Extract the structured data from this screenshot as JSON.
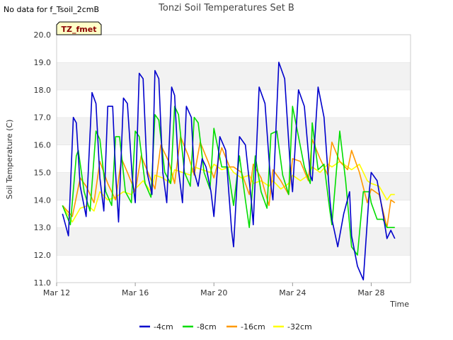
{
  "status_text": "No data for f_Tsoil_2cmB",
  "badge_label": "TZ_fmet",
  "chart_data": {
    "type": "line",
    "title": "Tonzi Soil Temperatures Set B",
    "xlabel": "Time",
    "ylabel": "Soil Temperature (C)",
    "ylim": [
      11.0,
      20.0
    ],
    "xlim_days": [
      0,
      18
    ],
    "y_ticks": [
      "11.0",
      "12.0",
      "13.0",
      "14.0",
      "15.0",
      "16.0",
      "17.0",
      "18.0",
      "19.0",
      "20.0"
    ],
    "x_ticks": [
      {
        "day": 0,
        "label": "Mar 12"
      },
      {
        "day": 4,
        "label": "Mar 16"
      },
      {
        "day": 8,
        "label": "Mar 20"
      },
      {
        "day": 12,
        "label": "Mar 24"
      },
      {
        "day": 16,
        "label": "Mar 28"
      }
    ],
    "grid": "horizontal bands",
    "legend_position": "bottom",
    "series": [
      {
        "name": "-4cm",
        "color": "#0000cc",
        "x": [
          0.3,
          0.6,
          0.85,
          1.0,
          1.2,
          1.5,
          1.8,
          2.0,
          2.2,
          2.4,
          2.6,
          2.85,
          3.0,
          3.15,
          3.4,
          3.6,
          3.85,
          4.0,
          4.2,
          4.4,
          4.6,
          4.85,
          5.0,
          5.2,
          5.4,
          5.6,
          5.85,
          6.0,
          6.2,
          6.4,
          6.6,
          6.85,
          7.0,
          7.2,
          7.4,
          7.6,
          7.85,
          8.0,
          8.3,
          8.6,
          8.9,
          9.0,
          9.3,
          9.6,
          9.9,
          10.0,
          10.3,
          10.6,
          10.9,
          11.0,
          11.3,
          11.6,
          11.9,
          12.0,
          12.3,
          12.6,
          12.9,
          13.0,
          13.3,
          13.6,
          13.9,
          14.0,
          14.3,
          14.6,
          14.9,
          15.0,
          15.3,
          15.6,
          15.9,
          16.0,
          16.3,
          16.6,
          16.8,
          17.0,
          17.2
        ],
        "y": [
          13.5,
          12.7,
          17.0,
          16.8,
          14.5,
          13.4,
          17.9,
          17.5,
          14.8,
          13.6,
          17.4,
          17.4,
          15.0,
          13.2,
          17.7,
          17.5,
          14.8,
          13.9,
          18.6,
          18.4,
          15.0,
          14.2,
          18.7,
          18.4,
          15.0,
          13.9,
          18.1,
          17.8,
          15.1,
          13.9,
          17.4,
          17.0,
          15.0,
          14.5,
          15.5,
          15.2,
          14.3,
          13.4,
          16.3,
          15.8,
          12.9,
          12.3,
          16.3,
          16.0,
          14.0,
          13.1,
          18.1,
          17.5,
          14.5,
          14.0,
          19.0,
          18.4,
          15.0,
          14.3,
          18.0,
          17.4,
          14.9,
          14.7,
          18.1,
          17.0,
          14.0,
          13.3,
          12.3,
          13.5,
          14.3,
          12.7,
          11.6,
          11.1,
          14.3,
          15.0,
          14.7,
          13.5,
          12.6,
          12.9,
          12.6
        ]
      },
      {
        "name": "-8cm",
        "color": "#00dd00",
        "x": [
          0.3,
          0.7,
          1.0,
          1.1,
          1.4,
          1.7,
          2.0,
          2.2,
          2.5,
          2.8,
          3.0,
          3.2,
          3.5,
          3.8,
          4.0,
          4.2,
          4.5,
          4.8,
          5.0,
          5.2,
          5.5,
          5.8,
          6.0,
          6.2,
          6.5,
          6.8,
          7.0,
          7.2,
          7.5,
          7.8,
          8.0,
          8.4,
          8.7,
          9.0,
          9.3,
          9.6,
          9.8,
          10.1,
          10.4,
          10.7,
          10.9,
          11.2,
          11.5,
          11.8,
          12.0,
          12.3,
          12.6,
          12.9,
          13.0,
          13.3,
          13.6,
          13.9,
          14.0,
          14.4,
          14.7,
          15.0,
          15.3,
          15.6,
          15.9,
          16.0,
          16.3,
          16.6,
          16.8,
          17.2
        ],
        "y": [
          13.8,
          13.1,
          15.6,
          15.8,
          14.3,
          13.6,
          16.5,
          16.2,
          14.3,
          13.8,
          16.3,
          16.3,
          14.3,
          13.9,
          16.5,
          16.3,
          14.6,
          14.1,
          17.1,
          16.9,
          15.0,
          14.6,
          17.4,
          17.1,
          15.0,
          14.5,
          17.0,
          16.8,
          15.0,
          14.4,
          16.6,
          15.2,
          15.2,
          13.8,
          15.6,
          14.0,
          13.0,
          15.6,
          14.3,
          13.7,
          16.4,
          16.5,
          14.9,
          14.2,
          17.4,
          16.3,
          15.2,
          14.6,
          16.8,
          15.1,
          15.3,
          13.6,
          13.1,
          16.5,
          14.7,
          12.3,
          12.0,
          14.3,
          14.3,
          13.9,
          13.3,
          13.3,
          13.0,
          13.0
        ]
      },
      {
        "name": "-16cm",
        "color": "#ff9900",
        "x": [
          0.3,
          0.8,
          1.2,
          1.5,
          1.9,
          2.2,
          2.6,
          3.0,
          3.3,
          3.6,
          4.0,
          4.3,
          4.7,
          5.0,
          5.3,
          5.7,
          6.0,
          6.3,
          6.7,
          7.0,
          7.3,
          7.7,
          8.0,
          8.4,
          8.8,
          9.0,
          9.4,
          9.8,
          10.0,
          10.4,
          10.8,
          11.0,
          11.4,
          11.8,
          12.0,
          12.4,
          12.8,
          13.0,
          13.4,
          13.8,
          14.0,
          14.4,
          14.8,
          15.0,
          15.4,
          15.8,
          16.0,
          16.4,
          16.8,
          17.0,
          17.2
        ],
        "y": [
          13.8,
          13.4,
          14.8,
          14.5,
          13.9,
          15.4,
          14.6,
          14.0,
          15.5,
          15.0,
          14.3,
          15.6,
          14.9,
          14.4,
          16.0,
          15.4,
          14.6,
          16.3,
          15.6,
          14.9,
          16.1,
          15.4,
          14.8,
          15.9,
          15.2,
          15.2,
          15.0,
          14.2,
          15.3,
          14.8,
          13.8,
          15.1,
          14.7,
          14.2,
          15.5,
          15.4,
          14.7,
          16.2,
          15.5,
          14.9,
          16.1,
          15.4,
          15.1,
          15.8,
          15.0,
          13.9,
          14.4,
          14.2,
          13.0,
          14.0,
          13.9
        ]
      },
      {
        "name": "-32cm",
        "color": "#ffff00",
        "x": [
          0.3,
          0.8,
          1.2,
          1.6,
          1.9,
          2.2,
          2.6,
          3.0,
          3.4,
          3.8,
          4.0,
          4.4,
          4.8,
          5.0,
          5.4,
          5.8,
          6.0,
          6.4,
          6.8,
          7.0,
          7.4,
          7.8,
          8.0,
          8.4,
          8.8,
          9.0,
          9.4,
          9.8,
          10.0,
          10.4,
          10.8,
          11.0,
          11.4,
          11.8,
          12.0,
          12.4,
          12.8,
          13.0,
          13.4,
          13.8,
          14.0,
          14.4,
          14.8,
          15.0,
          15.4,
          15.8,
          16.0,
          16.4,
          16.8,
          17.0,
          17.2
        ],
        "y": [
          13.8,
          13.2,
          13.7,
          13.8,
          13.6,
          14.3,
          14.0,
          14.1,
          14.3,
          14.2,
          14.4,
          14.7,
          14.3,
          14.9,
          14.8,
          14.6,
          15.1,
          15.0,
          14.9,
          15.2,
          15.1,
          15.0,
          15.3,
          15.1,
          15.2,
          15.0,
          14.8,
          14.9,
          14.6,
          14.7,
          14.5,
          14.7,
          14.4,
          14.6,
          14.9,
          14.7,
          14.9,
          15.2,
          15.0,
          15.3,
          15.2,
          15.4,
          15.2,
          15.1,
          15.3,
          14.7,
          14.6,
          14.5,
          14.0,
          14.2,
          14.2
        ]
      }
    ]
  }
}
